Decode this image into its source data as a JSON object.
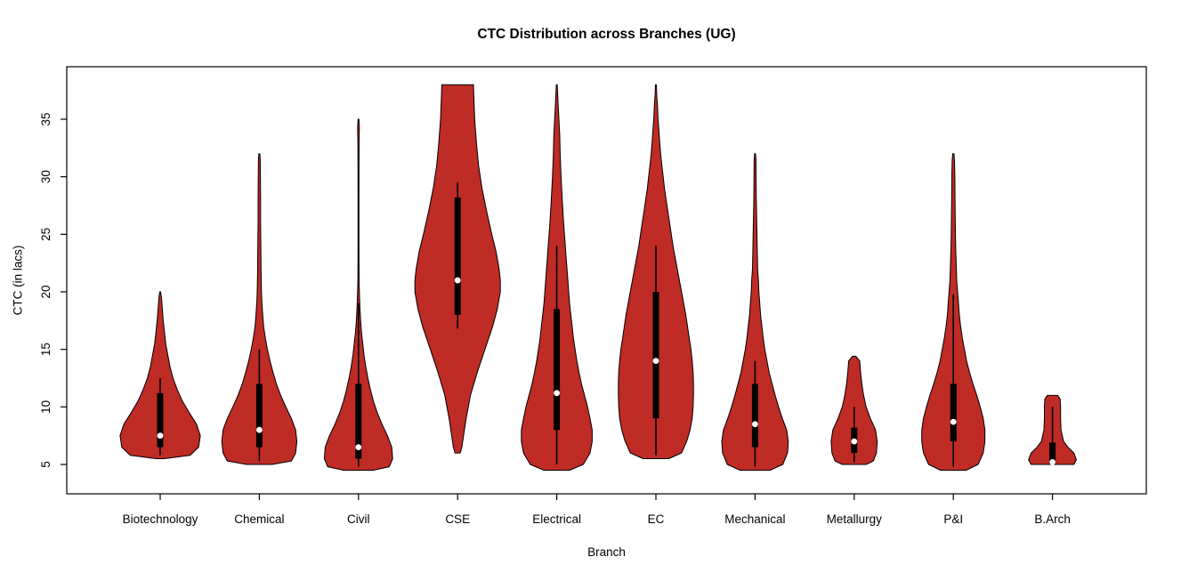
{
  "page": {
    "background": "#FFFFFF"
  },
  "chart_data": {
    "type": "violin",
    "title": "CTC Distribution across Branches (UG)",
    "xlabel": "Branch",
    "ylabel": "CTC (in lacs)",
    "ylim": [
      2.5,
      39.5
    ],
    "yticks": [
      5,
      10,
      15,
      20,
      25,
      30,
      35
    ],
    "grid": false,
    "legend": "none",
    "colors": {
      "violin_fill": "#BF2B25",
      "violin_stroke": "#000000",
      "box_fill": "#000000",
      "median_dot": "#FFFFFF",
      "axis": "#000000"
    },
    "categories": [
      "Biotechnology",
      "Chemical",
      "Civil",
      "CSE",
      "Electrical",
      "EC",
      "Mechanical",
      "Metallurgy",
      "P&I",
      "B.Arch"
    ],
    "series": [
      {
        "name": "Biotechnology",
        "min": 5.5,
        "max": 20,
        "q1": 6.5,
        "q3": 11.2,
        "median": 7.5,
        "whisker_low": 5.8,
        "whisker_high": 12.5,
        "density": [
          [
            5.5,
            0.1
          ],
          [
            5.8,
            0.7
          ],
          [
            6.5,
            0.9
          ],
          [
            7.5,
            0.94
          ],
          [
            8.5,
            0.85
          ],
          [
            9.5,
            0.68
          ],
          [
            10.5,
            0.52
          ],
          [
            11.5,
            0.4
          ],
          [
            12.5,
            0.3
          ],
          [
            13.5,
            0.23
          ],
          [
            14.5,
            0.18
          ],
          [
            15.5,
            0.13
          ],
          [
            16.5,
            0.1
          ],
          [
            17.5,
            0.07
          ],
          [
            18.5,
            0.05
          ],
          [
            19.5,
            0.03
          ],
          [
            20,
            0.01
          ]
        ]
      },
      {
        "name": "Chemical",
        "min": 5,
        "max": 32,
        "q1": 6.5,
        "q3": 12,
        "median": 8,
        "whisker_low": 5.3,
        "whisker_high": 15,
        "density": [
          [
            5,
            0.3
          ],
          [
            5.3,
            0.75
          ],
          [
            6,
            0.85
          ],
          [
            7,
            0.88
          ],
          [
            8,
            0.85
          ],
          [
            9,
            0.75
          ],
          [
            10,
            0.62
          ],
          [
            11,
            0.5
          ],
          [
            12,
            0.4
          ],
          [
            13,
            0.32
          ],
          [
            14,
            0.25
          ],
          [
            15,
            0.19
          ],
          [
            16,
            0.14
          ],
          [
            17,
            0.1
          ],
          [
            18,
            0.08
          ],
          [
            19,
            0.06
          ],
          [
            20,
            0.05
          ],
          [
            22,
            0.04
          ],
          [
            24,
            0.035
          ],
          [
            26,
            0.03
          ],
          [
            28,
            0.03
          ],
          [
            30,
            0.025
          ],
          [
            31.5,
            0.02
          ],
          [
            32,
            0.01
          ]
        ]
      },
      {
        "name": "Civil",
        "min": 4.5,
        "max": 35,
        "q1": 5.5,
        "q3": 12,
        "median": 6.5,
        "whisker_low": 4.8,
        "whisker_high": 19,
        "density": [
          [
            4.5,
            0.35
          ],
          [
            4.8,
            0.72
          ],
          [
            5.5,
            0.8
          ],
          [
            6.5,
            0.78
          ],
          [
            7.5,
            0.68
          ],
          [
            8.5,
            0.55
          ],
          [
            9.5,
            0.44
          ],
          [
            10.5,
            0.35
          ],
          [
            11.5,
            0.28
          ],
          [
            12.5,
            0.22
          ],
          [
            13.5,
            0.17
          ],
          [
            14.5,
            0.13
          ],
          [
            15.5,
            0.1
          ],
          [
            16.5,
            0.07
          ],
          [
            17.5,
            0.05
          ],
          [
            18.5,
            0.035
          ],
          [
            19.5,
            0.025
          ],
          [
            21,
            0.015
          ],
          [
            24,
            0.01
          ],
          [
            28,
            0.01
          ],
          [
            31,
            0.012
          ],
          [
            33,
            0.015
          ],
          [
            34.3,
            0.02
          ],
          [
            35,
            0.01
          ]
        ]
      },
      {
        "name": "CSE",
        "min": 6,
        "max": 38,
        "q1": 18,
        "q3": 28.2,
        "median": 21,
        "whisker_low": 16.8,
        "whisker_high": 29.5,
        "density": [
          [
            6,
            0.06
          ],
          [
            6.5,
            0.1
          ],
          [
            7.5,
            0.14
          ],
          [
            9,
            0.2
          ],
          [
            11,
            0.3
          ],
          [
            13,
            0.46
          ],
          [
            15,
            0.64
          ],
          [
            17,
            0.82
          ],
          [
            18.5,
            0.93
          ],
          [
            20,
            1.0
          ],
          [
            21,
            1.0
          ],
          [
            22,
            0.97
          ],
          [
            23.5,
            0.9
          ],
          [
            25,
            0.8
          ],
          [
            27,
            0.68
          ],
          [
            29,
            0.57
          ],
          [
            31,
            0.49
          ],
          [
            33,
            0.44
          ],
          [
            35,
            0.4
          ],
          [
            37,
            0.38
          ],
          [
            38,
            0.37
          ]
        ]
      },
      {
        "name": "Electrical",
        "min": 4.5,
        "max": 38,
        "q1": 8,
        "q3": 18.5,
        "median": 11.2,
        "whisker_low": 5,
        "whisker_high": 24,
        "density": [
          [
            4.5,
            0.3
          ],
          [
            5,
            0.62
          ],
          [
            6,
            0.78
          ],
          [
            7,
            0.83
          ],
          [
            8,
            0.83
          ],
          [
            9,
            0.78
          ],
          [
            10,
            0.72
          ],
          [
            11,
            0.65
          ],
          [
            12,
            0.58
          ],
          [
            13,
            0.52
          ],
          [
            14,
            0.47
          ],
          [
            15,
            0.43
          ],
          [
            16,
            0.39
          ],
          [
            17,
            0.36
          ],
          [
            18,
            0.33
          ],
          [
            19,
            0.3
          ],
          [
            20,
            0.28
          ],
          [
            21,
            0.26
          ],
          [
            22,
            0.24
          ],
          [
            24,
            0.2
          ],
          [
            26,
            0.16
          ],
          [
            28,
            0.13
          ],
          [
            30,
            0.1
          ],
          [
            32,
            0.08
          ],
          [
            33.5,
            0.07
          ],
          [
            35,
            0.05
          ],
          [
            36.5,
            0.03
          ],
          [
            38,
            0.01
          ]
        ]
      },
      {
        "name": "EC",
        "min": 5.5,
        "max": 38,
        "q1": 9,
        "q3": 20,
        "median": 14,
        "whisker_low": 5.8,
        "whisker_high": 24,
        "density": [
          [
            5.5,
            0.3
          ],
          [
            6,
            0.6
          ],
          [
            7,
            0.72
          ],
          [
            8,
            0.8
          ],
          [
            9,
            0.85
          ],
          [
            10,
            0.87
          ],
          [
            11,
            0.88
          ],
          [
            12,
            0.88
          ],
          [
            13,
            0.87
          ],
          [
            14,
            0.85
          ],
          [
            15,
            0.82
          ],
          [
            16,
            0.78
          ],
          [
            17,
            0.74
          ],
          [
            18,
            0.7
          ],
          [
            19,
            0.65
          ],
          [
            20,
            0.6
          ],
          [
            21,
            0.55
          ],
          [
            22,
            0.5
          ],
          [
            23,
            0.45
          ],
          [
            24,
            0.4
          ],
          [
            25,
            0.36
          ],
          [
            26,
            0.32
          ],
          [
            27,
            0.28
          ],
          [
            28,
            0.24
          ],
          [
            29,
            0.2
          ],
          [
            30,
            0.17
          ],
          [
            31,
            0.14
          ],
          [
            32,
            0.11
          ],
          [
            33,
            0.09
          ],
          [
            34,
            0.07
          ],
          [
            35,
            0.05
          ],
          [
            36,
            0.04
          ],
          [
            37,
            0.02
          ],
          [
            38,
            0.01
          ]
        ]
      },
      {
        "name": "Mechanical",
        "min": 4.5,
        "max": 32,
        "q1": 6.5,
        "q3": 12,
        "median": 8.5,
        "whisker_low": 4.8,
        "whisker_high": 14,
        "density": [
          [
            4.5,
            0.35
          ],
          [
            5,
            0.65
          ],
          [
            6,
            0.76
          ],
          [
            7,
            0.78
          ],
          [
            8,
            0.74
          ],
          [
            9,
            0.64
          ],
          [
            10,
            0.55
          ],
          [
            11,
            0.47
          ],
          [
            12,
            0.4
          ],
          [
            13,
            0.33
          ],
          [
            14,
            0.28
          ],
          [
            15,
            0.23
          ],
          [
            16,
            0.19
          ],
          [
            17,
            0.16
          ],
          [
            18,
            0.13
          ],
          [
            19,
            0.11
          ],
          [
            20,
            0.09
          ],
          [
            21,
            0.08
          ],
          [
            22,
            0.06
          ],
          [
            24,
            0.05
          ],
          [
            26,
            0.04
          ],
          [
            28,
            0.03
          ],
          [
            30,
            0.025
          ],
          [
            31.5,
            0.02
          ],
          [
            32,
            0.01
          ]
        ]
      },
      {
        "name": "Metallurgy",
        "min": 5,
        "max": 14.4,
        "q1": 6,
        "q3": 8.2,
        "median": 7,
        "whisker_low": 5.2,
        "whisker_high": 10,
        "density": [
          [
            5,
            0.28
          ],
          [
            5.3,
            0.45
          ],
          [
            6,
            0.52
          ],
          [
            7,
            0.54
          ],
          [
            8,
            0.5
          ],
          [
            9,
            0.38
          ],
          [
            10,
            0.28
          ],
          [
            11,
            0.22
          ],
          [
            12,
            0.18
          ],
          [
            13,
            0.15
          ],
          [
            14,
            0.13
          ],
          [
            14.4,
            0.04
          ]
        ]
      },
      {
        "name": "P&I",
        "min": 4.5,
        "max": 32,
        "q1": 7,
        "q3": 12,
        "median": 8.7,
        "whisker_low": 4.8,
        "whisker_high": 19.8,
        "density": [
          [
            4.5,
            0.3
          ],
          [
            5,
            0.58
          ],
          [
            6,
            0.7
          ],
          [
            7,
            0.74
          ],
          [
            8,
            0.74
          ],
          [
            9,
            0.7
          ],
          [
            10,
            0.63
          ],
          [
            11,
            0.55
          ],
          [
            12,
            0.46
          ],
          [
            13,
            0.38
          ],
          [
            14,
            0.31
          ],
          [
            15,
            0.26
          ],
          [
            16,
            0.21
          ],
          [
            17,
            0.17
          ],
          [
            18,
            0.14
          ],
          [
            19,
            0.12
          ],
          [
            20,
            0.1
          ],
          [
            21,
            0.08
          ],
          [
            22,
            0.07
          ],
          [
            24,
            0.055
          ],
          [
            26,
            0.045
          ],
          [
            28,
            0.04
          ],
          [
            30,
            0.035
          ],
          [
            31.3,
            0.03
          ],
          [
            32,
            0.015
          ]
        ]
      },
      {
        "name": "B.Arch",
        "min": 5,
        "max": 11,
        "q1": 5,
        "q3": 6.9,
        "median": 5.2,
        "whisker_low": 5,
        "whisker_high": 10,
        "density": [
          [
            5,
            0.5
          ],
          [
            5.4,
            0.56
          ],
          [
            6,
            0.5
          ],
          [
            6.5,
            0.36
          ],
          [
            7,
            0.26
          ],
          [
            8,
            0.2
          ],
          [
            9,
            0.19
          ],
          [
            10,
            0.19
          ],
          [
            10.7,
            0.18
          ],
          [
            11,
            0.12
          ]
        ]
      }
    ]
  }
}
